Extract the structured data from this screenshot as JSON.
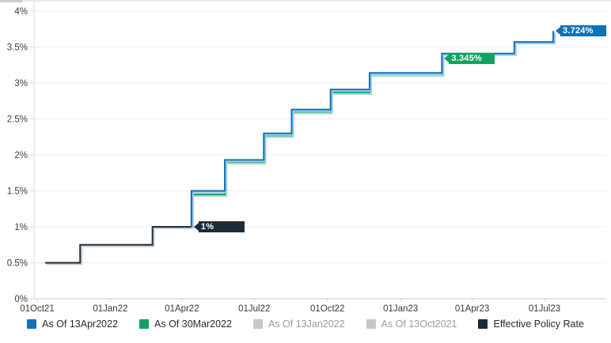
{
  "chart_data": {
    "type": "line",
    "subtype": "step",
    "title": "",
    "xlabel": "",
    "ylabel": "",
    "grid": "horizontal",
    "legend_position": "bottom",
    "ylim": [
      0,
      4
    ],
    "y_ticks": [
      {
        "value": 0,
        "label": "0%"
      },
      {
        "value": 0.5,
        "label": "0.5%"
      },
      {
        "value": 1,
        "label": "1%"
      },
      {
        "value": 1.5,
        "label": "1.5%"
      },
      {
        "value": 2,
        "label": "2%"
      },
      {
        "value": 2.5,
        "label": "2.5%"
      },
      {
        "value": 3,
        "label": "3%"
      },
      {
        "value": 3.5,
        "label": "3.5%"
      },
      {
        "value": 4,
        "label": "4%"
      }
    ],
    "x_ticks": [
      {
        "date": "2021-10-01",
        "label": "01Oct21"
      },
      {
        "date": "2022-01-01",
        "label": "01Jan22"
      },
      {
        "date": "2022-04-01",
        "label": "01Apr22"
      },
      {
        "date": "2022-07-01",
        "label": "01Jul22"
      },
      {
        "date": "2022-10-01",
        "label": "01Oct22"
      },
      {
        "date": "2023-01-01",
        "label": "01Jan23"
      },
      {
        "date": "2023-04-01",
        "label": "01Apr23"
      },
      {
        "date": "2023-07-01",
        "label": "01Jul23"
      }
    ],
    "series": [
      {
        "name": "Effective Policy Rate",
        "color": "#1c2b36",
        "shadow_color": "#c9ced2",
        "start": {
          "date": "2021-10-11",
          "value": 0.5
        },
        "steps": [
          [
            "2021-11-24",
            0.75
          ],
          [
            "2022-02-23",
            1.0
          ]
        ],
        "end_date": "2022-04-13",
        "end_label": "1%"
      },
      {
        "name": "As Of 30Mar2022",
        "color": "#10a35f",
        "shadow_color": "#a8dcc6",
        "start": {
          "date": "2022-04-13",
          "value": 1.0
        },
        "steps": [
          [
            "2022-04-13",
            1.45
          ],
          [
            "2022-05-25",
            1.9
          ],
          [
            "2022-07-13",
            2.27
          ],
          [
            "2022-08-17",
            2.6
          ],
          [
            "2022-10-05",
            2.87
          ],
          [
            "2022-11-23",
            3.12
          ],
          [
            "2023-02-22",
            3.345
          ]
        ],
        "end_date": "2023-02-22",
        "end_label": "3.345%"
      },
      {
        "name": "As Of 13Apr2022",
        "color": "#1172b8",
        "shadow_color": "#a3cde9",
        "start": {
          "date": "2022-04-13",
          "value": 1.0
        },
        "steps": [
          [
            "2022-04-13",
            1.5
          ],
          [
            "2022-05-25",
            1.93
          ],
          [
            "2022-07-13",
            2.3
          ],
          [
            "2022-08-17",
            2.63
          ],
          [
            "2022-10-05",
            2.91
          ],
          [
            "2022-11-23",
            3.14
          ],
          [
            "2023-02-22",
            3.41
          ],
          [
            "2023-05-24",
            3.57
          ],
          [
            "2023-07-12",
            3.724
          ]
        ],
        "end_date": "2023-07-12",
        "end_label": "3.724%"
      }
    ],
    "legend": [
      {
        "label": "As Of 13Apr2022",
        "color": "#1172b8",
        "disabled": false
      },
      {
        "label": "As Of 30Mar2022",
        "color": "#10a35f",
        "disabled": false
      },
      {
        "label": "As Of 13Jan2022",
        "color": "#c7c7c7",
        "disabled": true
      },
      {
        "label": "As Of 13Oct2021",
        "color": "#c7c7c7",
        "disabled": true
      },
      {
        "label": "Effective Policy Rate",
        "color": "#1c2b36",
        "disabled": false
      }
    ]
  },
  "colors": {
    "gridline": "#f0f0f0",
    "axis": "#d6d9da",
    "tick_text": "#3b3b3b"
  }
}
